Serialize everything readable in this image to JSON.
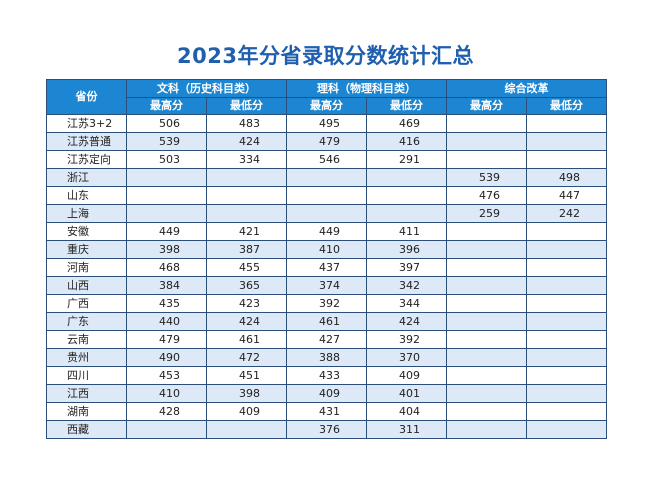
{
  "title": "2023年分省录取分数统计汇总",
  "header": {
    "province": "省份",
    "groups": [
      "文科（历史科目类）",
      "理科（物理科目类）",
      "综合改革"
    ],
    "max": "最高分",
    "min": "最低分"
  },
  "rows": [
    {
      "province": "江苏3+2",
      "scores": [
        "506",
        "483",
        "495",
        "469",
        "",
        ""
      ]
    },
    {
      "province": "江苏普通",
      "scores": [
        "539",
        "424",
        "479",
        "416",
        "",
        ""
      ]
    },
    {
      "province": "江苏定向",
      "scores": [
        "503",
        "334",
        "546",
        "291",
        "",
        ""
      ]
    },
    {
      "province": "浙江",
      "scores": [
        "",
        "",
        "",
        "",
        "539",
        "498"
      ]
    },
    {
      "province": "山东",
      "scores": [
        "",
        "",
        "",
        "",
        "476",
        "447"
      ]
    },
    {
      "province": "上海",
      "scores": [
        "",
        "",
        "",
        "",
        "259",
        "242"
      ]
    },
    {
      "province": "安徽",
      "scores": [
        "449",
        "421",
        "449",
        "411",
        "",
        ""
      ]
    },
    {
      "province": "重庆",
      "scores": [
        "398",
        "387",
        "410",
        "396",
        "",
        ""
      ]
    },
    {
      "province": "河南",
      "scores": [
        "468",
        "455",
        "437",
        "397",
        "",
        ""
      ]
    },
    {
      "province": "山西",
      "scores": [
        "384",
        "365",
        "374",
        "342",
        "",
        ""
      ]
    },
    {
      "province": "广西",
      "scores": [
        "435",
        "423",
        "392",
        "344",
        "",
        ""
      ]
    },
    {
      "province": "广东",
      "scores": [
        "440",
        "424",
        "461",
        "424",
        "",
        ""
      ]
    },
    {
      "province": "云南",
      "scores": [
        "479",
        "461",
        "427",
        "392",
        "",
        ""
      ]
    },
    {
      "province": "贵州",
      "scores": [
        "490",
        "472",
        "388",
        "370",
        "",
        ""
      ]
    },
    {
      "province": "四川",
      "scores": [
        "453",
        "451",
        "433",
        "409",
        "",
        ""
      ]
    },
    {
      "province": "江西",
      "scores": [
        "410",
        "398",
        "409",
        "401",
        "",
        ""
      ]
    },
    {
      "province": "湖南",
      "scores": [
        "428",
        "409",
        "431",
        "404",
        "",
        ""
      ]
    },
    {
      "province": "西藏",
      "scores": [
        "",
        "",
        "376",
        "311",
        "",
        ""
      ]
    }
  ]
}
